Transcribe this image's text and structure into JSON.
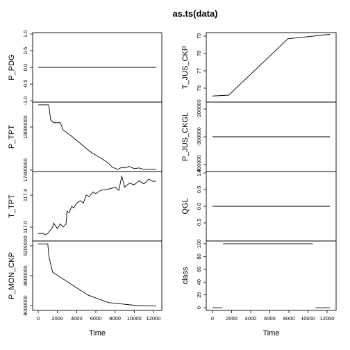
{
  "title": "as.ts(data)",
  "chart_data": [
    {
      "type": "line",
      "ylabel": "P_PDG",
      "xlim": [
        -578,
        12870
      ],
      "ylim": [
        -1.04,
        1.04
      ],
      "yticks": [
        {
          "value": -1,
          "label": "-1.0"
        },
        -0.5,
        {
          "value": 0,
          "label": "0.0"
        },
        0.5,
        {
          "value": 1,
          "label": "1.0"
        }
      ],
      "x": [
        0,
        12300
      ],
      "values": [
        0,
        0
      ]
    },
    {
      "type": "line",
      "ylabel": "P_TPT",
      "xlim": [
        -578,
        12870
      ],
      "ylim": [
        17380000,
        18348000
      ],
      "yticks": [
        17400000,
        18000000
      ],
      "x": [
        0,
        1100,
        1300,
        1600,
        2300,
        2600,
        3500,
        4500,
        5200,
        5600,
        6100,
        6600,
        7300,
        7700,
        8300,
        8700,
        9000,
        9500,
        10000,
        10500,
        11000,
        12300
      ],
      "values": [
        18310000,
        18310000,
        18100000,
        18060000,
        18060000,
        17960000,
        17870000,
        17760000,
        17680000,
        17640000,
        17600000,
        17560000,
        17500000,
        17440000,
        17410000,
        17440000,
        17430000,
        17450000,
        17420000,
        17430000,
        17410000,
        17410000
      ]
    },
    {
      "type": "line",
      "ylabel": "T_TPT",
      "xlim": [
        -578,
        12870
      ],
      "ylim": [
        116.826,
        117.696
      ],
      "yticks": [
        {
          "value": 117,
          "label": "117.0"
        },
        117.4
      ],
      "x": [
        0,
        600,
        700,
        1000,
        1500,
        1600,
        2000,
        2300,
        2600,
        2900,
        3000,
        3200,
        3500,
        3700,
        4000,
        4400,
        4700,
        5000,
        5300,
        5700,
        6000,
        6500,
        7000,
        7500,
        8000,
        8400,
        8700,
        9000,
        9500,
        10000,
        10500,
        11000,
        11500,
        12000,
        12300
      ],
      "values": [
        116.92,
        116.92,
        116.9,
        116.92,
        117.0,
        117.05,
        116.98,
        117.04,
        117.0,
        117.04,
        117.2,
        117.18,
        117.26,
        117.24,
        117.3,
        117.33,
        117.3,
        117.4,
        117.38,
        117.44,
        117.42,
        117.46,
        117.47,
        117.48,
        117.5,
        117.46,
        117.64,
        117.5,
        117.55,
        117.53,
        117.58,
        117.54,
        117.6,
        117.57,
        117.58
      ]
    },
    {
      "type": "line",
      "ylabel": "P_MON_CKP",
      "xlabel": "Time",
      "xlim": [
        -578,
        12870
      ],
      "ylim": [
        7902300,
        9297700
      ],
      "yticks": [
        8000000,
        8600000,
        9200000
      ],
      "xticks": [
        0,
        2000,
        4000,
        6000,
        8000,
        10000,
        12000
      ],
      "x": [
        0,
        1000,
        1100,
        1500,
        5200,
        7300,
        10300,
        12300
      ],
      "values": [
        9240000,
        9240000,
        9000000,
        8670000,
        8210000,
        8060000,
        8000000,
        7990000
      ]
    },
    {
      "type": "line",
      "ylabel": "T_JUS_CKP",
      "xlim": [
        -655,
        12945
      ],
      "ylim": [
        75.2,
        79.2
      ],
      "yticks": [
        76,
        77,
        78,
        79
      ],
      "x": [
        0,
        1700,
        7900,
        12300
      ],
      "values": [
        75.55,
        75.6,
        78.85,
        79.1
      ]
    },
    {
      "type": "line",
      "ylabel": "P_JUS_CKGL",
      "xlim": [
        -655,
        12945
      ],
      "ylim": [
        -425000,
        -175000
      ],
      "yticks": [
        -400000,
        -300000,
        -200000
      ],
      "x": [
        0,
        12300
      ],
      "values": [
        -300000,
        -300000
      ]
    },
    {
      "type": "line",
      "ylabel": "QGL",
      "xlim": [
        -655,
        12945
      ],
      "ylim": [
        -1.04,
        1.04
      ],
      "yticks": [
        -0.5,
        {
          "value": 0,
          "label": "0.0"
        },
        0.5,
        {
          "value": 1,
          "label": "1.0"
        }
      ],
      "x": [
        0,
        12300
      ],
      "values": [
        0,
        0
      ]
    },
    {
      "type": "line",
      "ylabel": "class",
      "xlabel": "Time",
      "xlim": [
        -655,
        12945
      ],
      "ylim": [
        -4.3,
        104.3
      ],
      "yticks": [
        0,
        20,
        40,
        60,
        80,
        100
      ],
      "xticks": [
        0,
        2000,
        4000,
        6000,
        8000,
        10000,
        12000
      ],
      "x": [
        0,
        1000,
        1050,
        1100,
        10500,
        10650,
        10800,
        12300
      ],
      "values": [
        0,
        0,
        null,
        100,
        100,
        null,
        0,
        0
      ]
    }
  ]
}
